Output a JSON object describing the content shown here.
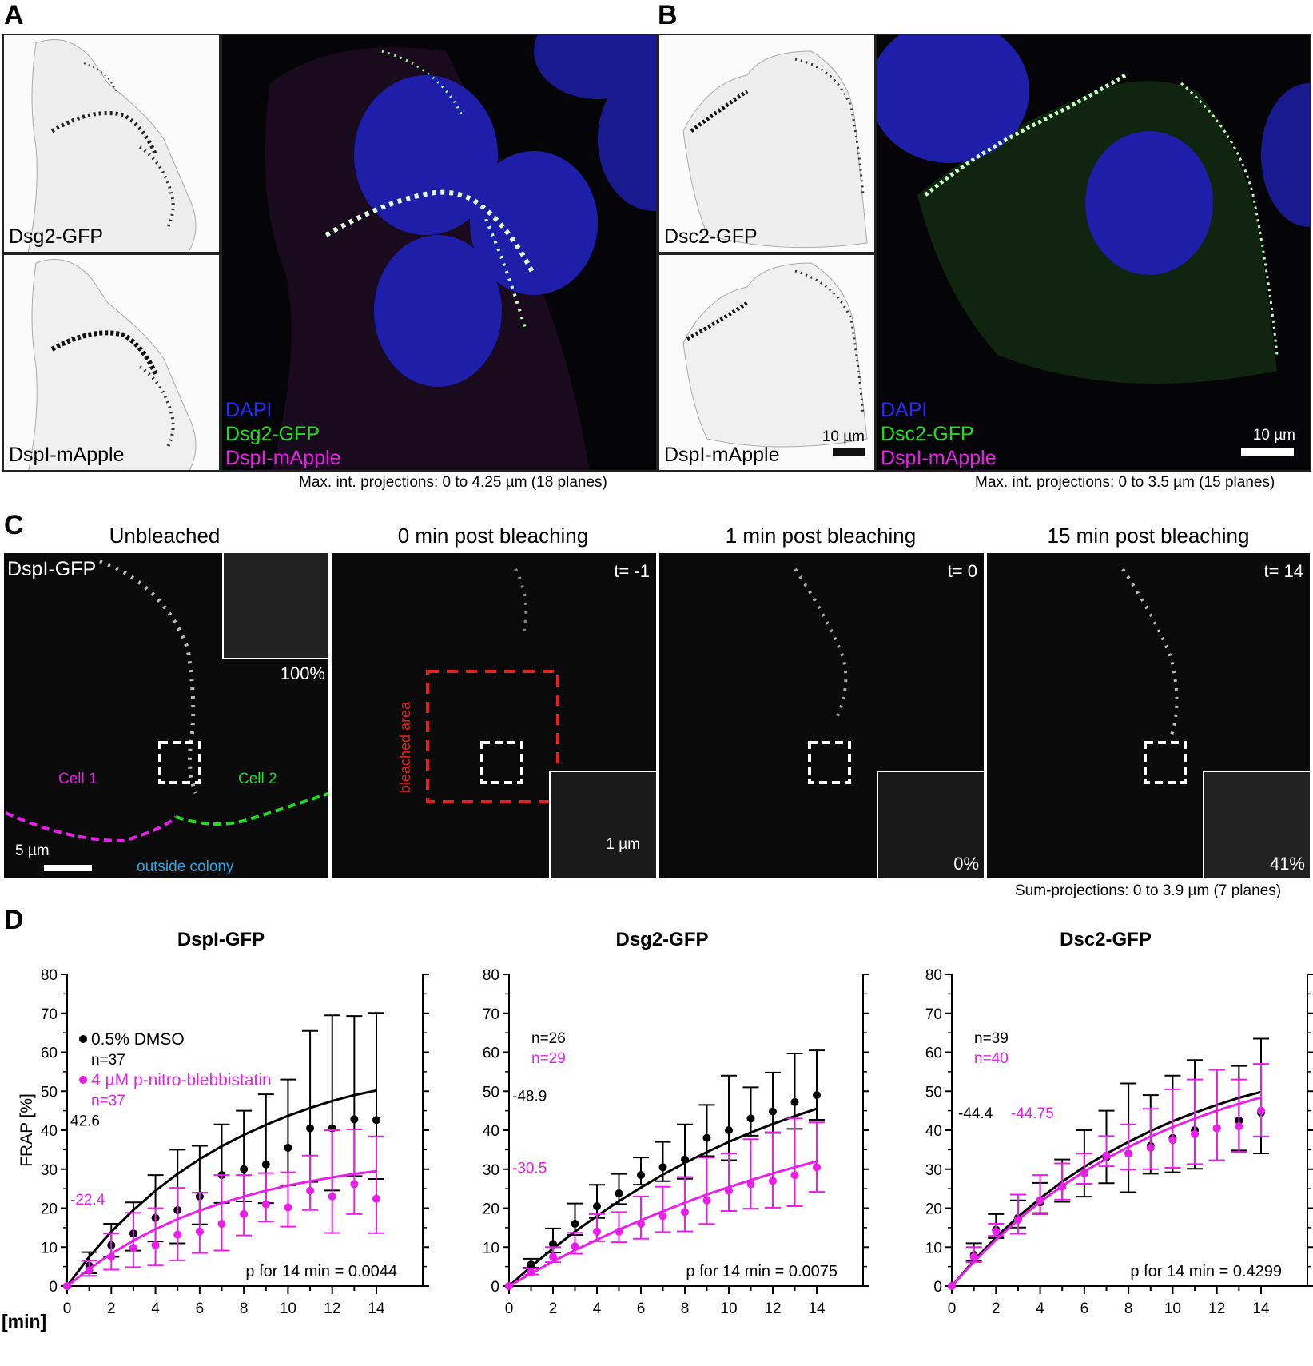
{
  "panels": {
    "A": "A",
    "B": "B",
    "C": "C",
    "D": "D"
  },
  "panelA": {
    "top_label": "Dsg2-GFP",
    "bottom_label": "DspI-mApple",
    "legend": [
      "DAPI",
      "Dsg2-GFP",
      "DspI-mApple"
    ],
    "caption": "Max. int. projections: 0 to 4.25 µm (18 planes)"
  },
  "panelB": {
    "top_label": "Dsc2-GFP",
    "bottom_label": "DspI-mApple",
    "legend": [
      "DAPI",
      "Dsc2-GFP",
      "DspI-mApple"
    ],
    "scale_small": "10 µm",
    "scale_large": "10 µm",
    "caption": "Max. int. projections: 0 to 3.5 µm (15 planes)"
  },
  "panelC": {
    "conditions": [
      "Unbleached",
      "0 min post bleaching",
      "1 min post bleaching",
      "15 min post bleaching"
    ],
    "channel": "DspI-GFP",
    "times": [
      "t= -1",
      "t= 0",
      "t= 14"
    ],
    "percents": [
      "100%",
      "0%",
      "41%"
    ],
    "cell1": "Cell 1",
    "cell2": "Cell 2",
    "outside": "outside colony",
    "bleached": "bleached area",
    "scale_5": "5 µm",
    "scale_1": "1 µm",
    "caption": "Sum-projections: 0 to 3.9 µm (7 planes)"
  },
  "colors": {
    "dmso": "#000000",
    "blebb": "#e81fe8",
    "dapi": "#2a2aff",
    "gfp": "#22dd22",
    "mapple": "#e81fe8",
    "bleach": "#e62020",
    "outside": "#2aa8e8"
  },
  "chart_data": [
    {
      "type": "line",
      "title": "DspI-GFP",
      "ylabel": "FRAP [%]",
      "xlabel": "[min]",
      "xlim": [
        0,
        14
      ],
      "ylim": [
        0,
        80
      ],
      "x": [
        0,
        1,
        2,
        3,
        4,
        5,
        6,
        7,
        8,
        9,
        10,
        11,
        12,
        13,
        14
      ],
      "legend": [
        "0.5% DMSO",
        "n=37",
        "4 µM p-nitro-blebbistatin",
        "n=37"
      ],
      "series": [
        {
          "name": "0.5% DMSO",
          "values": [
            0,
            5.2,
            10.5,
            13.5,
            17.5,
            19.5,
            23,
            28.5,
            30,
            31.2,
            35.5,
            40.5,
            40.5,
            42.8,
            42.6
          ],
          "err": [
            0,
            3.5,
            5.5,
            8,
            11,
            15.5,
            13,
            13,
            15,
            18,
            17.5,
            25,
            29,
            26.5,
            27.5
          ],
          "fit": [
            0,
            7.5,
            14,
            19.5,
            24.5,
            28.8,
            32.6,
            35.9,
            38.8,
            41.4,
            43.7,
            45.7,
            47.5,
            49,
            50.2
          ],
          "plateau_label": "42.6"
        },
        {
          "name": "4 µM p-nitro-blebbistatin",
          "values": [
            0,
            4,
            7.5,
            9.8,
            10.5,
            13.2,
            14,
            16,
            18.5,
            21,
            20.2,
            24.5,
            23,
            26.2,
            22.4
          ],
          "err": [
            0,
            2.5,
            6,
            9,
            9.5,
            12,
            10,
            12.5,
            10,
            8,
            9,
            9,
            17,
            14,
            16
          ],
          "fit": [
            0,
            4.4,
            8.3,
            11.7,
            14.6,
            17.2,
            19.4,
            21.3,
            23,
            24.5,
            25.8,
            26.9,
            27.9,
            28.8,
            29.5
          ],
          "plateau_label": "-22.4"
        }
      ],
      "annotation": "p for 14 min = 0.0044"
    },
    {
      "type": "line",
      "title": "Dsg2-GFP",
      "xlim": [
        0,
        14
      ],
      "ylim": [
        0,
        80
      ],
      "x": [
        0,
        1,
        2,
        3,
        4,
        5,
        6,
        7,
        8,
        9,
        10,
        11,
        12,
        13,
        14
      ],
      "legend": [
        "n=26",
        "n=29"
      ],
      "series": [
        {
          "name": "n=26",
          "values": [
            0,
            5.5,
            10.8,
            16,
            20.5,
            23.8,
            28.5,
            30.5,
            32.5,
            38,
            40,
            43,
            44.8,
            47.2,
            49
          ],
          "err": [
            0,
            1.5,
            4,
            5.2,
            5.5,
            5,
            4.5,
            6.5,
            9,
            8.5,
            14,
            8,
            10,
            12.5,
            11.5
          ],
          "fit": [
            0,
            5,
            9.6,
            14,
            18,
            21.8,
            25.3,
            28.6,
            31.6,
            34.4,
            37,
            39.4,
            41.6,
            43.6,
            45.5
          ],
          "plateau_label": "-48.9"
        },
        {
          "name": "n=29",
          "values": [
            0,
            3.5,
            7.5,
            10.2,
            14,
            14,
            16,
            18,
            19,
            22,
            24.5,
            26.2,
            27,
            28.5,
            30.5
          ],
          "err": [
            0,
            1,
            2.5,
            3.5,
            4.5,
            5,
            7,
            7.5,
            9,
            11,
            9.5,
            11.5,
            12.5,
            14.5,
            11.5
          ],
          "fit": [
            0,
            3.2,
            6.3,
            9.2,
            11.9,
            14.5,
            16.9,
            19.2,
            21.4,
            23.5,
            25.4,
            27.2,
            28.9,
            30.5,
            32
          ],
          "plateau_label": "-30.5"
        }
      ],
      "annotation": "p for 14 min = 0.0075"
    },
    {
      "type": "line",
      "title": "Dsc2-GFP",
      "xlim": [
        0,
        14
      ],
      "ylim": [
        0,
        80
      ],
      "x": [
        0,
        1,
        2,
        3,
        4,
        5,
        6,
        7,
        8,
        9,
        10,
        11,
        12,
        13,
        14
      ],
      "legend": [
        "n=39",
        "n=40"
      ],
      "series": [
        {
          "name": "n=39",
          "values": [
            0,
            8,
            14.5,
            17.5,
            21.5,
            25.5,
            29,
            33,
            34,
            36,
            38,
            40,
            40.5,
            42.5,
            44.5
          ],
          "err": [
            0,
            3,
            4,
            4.5,
            5,
            7,
            11,
            12,
            18,
            13,
            16,
            18,
            15,
            14,
            19
          ],
          "fit": [
            0,
            6.5,
            12.5,
            17.8,
            22.5,
            26.8,
            30.6,
            34,
            37,
            39.8,
            42.3,
            44.5,
            46.5,
            48.3,
            49.8
          ],
          "plateau_label": "-44.4"
        },
        {
          "name": "n=40",
          "values": [
            0,
            7.5,
            14,
            17,
            22,
            25.5,
            29,
            33.5,
            34,
            35.5,
            37.5,
            39,
            40.5,
            41,
            45
          ],
          "err": [
            0,
            2.5,
            2,
            6.5,
            6.5,
            6,
            5,
            5,
            7.5,
            10,
            13,
            14,
            15,
            12,
            12
          ],
          "fit": [
            0,
            6.2,
            11.9,
            17,
            21.6,
            25.7,
            29.4,
            32.7,
            35.7,
            38.4,
            40.8,
            43,
            45,
            46.8,
            48.4
          ],
          "plateau_label": "-44.75"
        }
      ],
      "annotation": "p for 14 min = 0.4299"
    }
  ]
}
